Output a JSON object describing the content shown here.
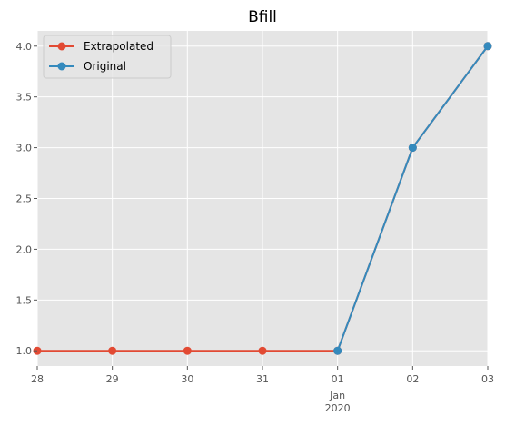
{
  "chart_data": {
    "type": "line",
    "title": "Bfill",
    "xlabel": "",
    "ylabel": "",
    "x": [
      "2019-12-28",
      "2019-12-29",
      "2019-12-30",
      "2019-12-31",
      "2020-01-01",
      "2020-01-02",
      "2020-01-03"
    ],
    "x_tick_labels": [
      "28",
      "29",
      "30",
      "31",
      "01",
      "02",
      "03"
    ],
    "x_secondary_label": [
      "Jan",
      "2020"
    ],
    "ylim": [
      0.85,
      4.15
    ],
    "y_ticks": [
      1.0,
      1.5,
      2.0,
      2.5,
      3.0,
      3.5,
      4.0
    ],
    "y_tick_labels": [
      "1.0",
      "1.5",
      "2.0",
      "2.5",
      "3.0",
      "3.5",
      "4.0"
    ],
    "grid": true,
    "legend_position": "top-left",
    "series": [
      {
        "name": "Extrapolated",
        "color": "#E24A33",
        "x": [
          "2019-12-28",
          "2019-12-29",
          "2019-12-30",
          "2019-12-31",
          "2020-01-01",
          "2020-01-02",
          "2020-01-03"
        ],
        "values": [
          1.0,
          1.0,
          1.0,
          1.0,
          1.0,
          3.0,
          4.0
        ]
      },
      {
        "name": "Original",
        "color": "#348ABD",
        "x": [
          "2020-01-01",
          "2020-01-02",
          "2020-01-03"
        ],
        "values": [
          1.0,
          3.0,
          4.0
        ]
      }
    ]
  }
}
